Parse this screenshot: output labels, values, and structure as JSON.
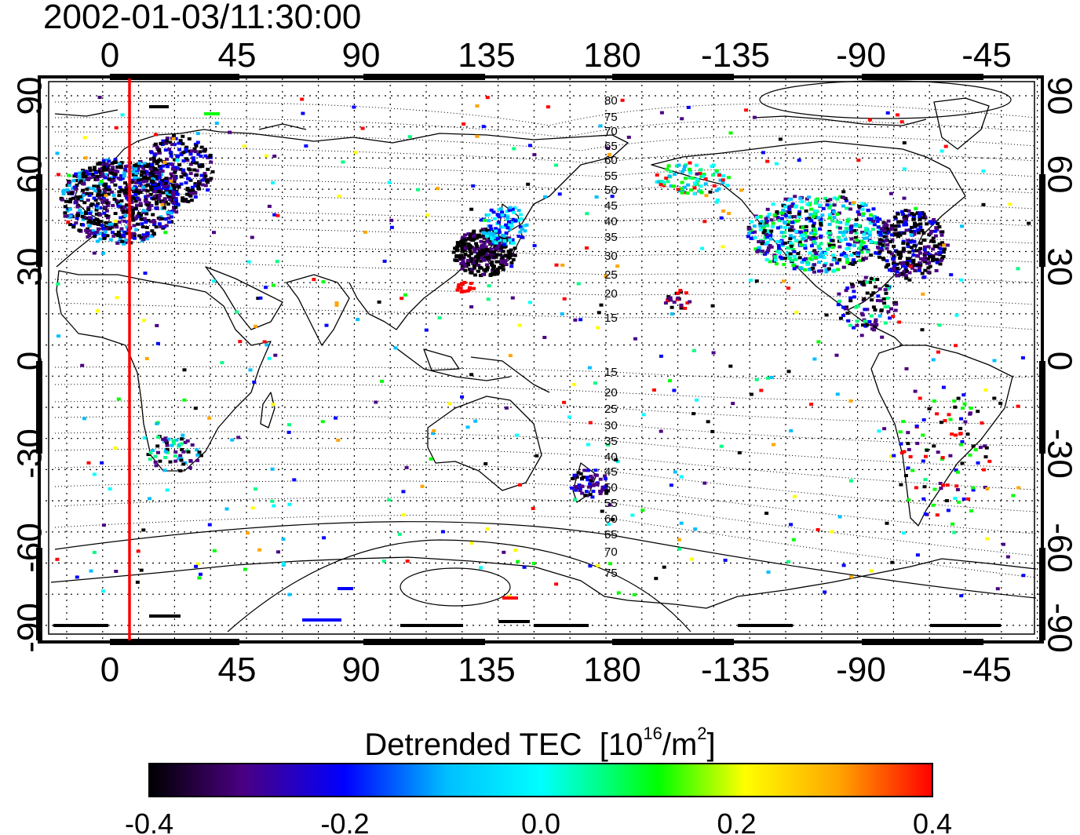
{
  "timestamp": "2002-01-03/11:30:00",
  "map": {
    "x_ticks": [
      "0",
      "45",
      "90",
      "135",
      "180",
      "-135",
      "-90",
      "-45"
    ],
    "y_ticks_left": [
      "90",
      "60",
      "30",
      "0",
      "-30",
      "-60",
      "-90"
    ],
    "y_ticks_right": [
      "90",
      "60",
      "30",
      "0",
      "-30",
      "-60",
      "-90"
    ],
    "marker_longitude": 7,
    "marker_color": "#ff0000",
    "contour_labels_north": [
      "80",
      "75",
      "70",
      "65",
      "60",
      "55",
      "50",
      "45",
      "40",
      "35",
      "30",
      "25",
      "20",
      "15"
    ],
    "contour_labels_south": [
      "15",
      "20",
      "25",
      "30",
      "35",
      "40",
      "45",
      "50",
      "55",
      "60",
      "65",
      "70",
      "75"
    ]
  },
  "colorbar": {
    "title_main": "Detrended TEC",
    "title_unit_open": "[10",
    "title_exp": "16",
    "title_unit_mid": "/m",
    "title_exp2": "2",
    "title_unit_close": "]",
    "tick_labels": [
      "-0.4",
      "-0.2",
      "0.0",
      "0.2",
      "0.4"
    ],
    "colormap": [
      "#000000",
      "#4b0082",
      "#0000ff",
      "#00bfff",
      "#00ffff",
      "#00ff80",
      "#00ff00",
      "#ffff00",
      "#ffa500",
      "#ff0000"
    ]
  }
}
